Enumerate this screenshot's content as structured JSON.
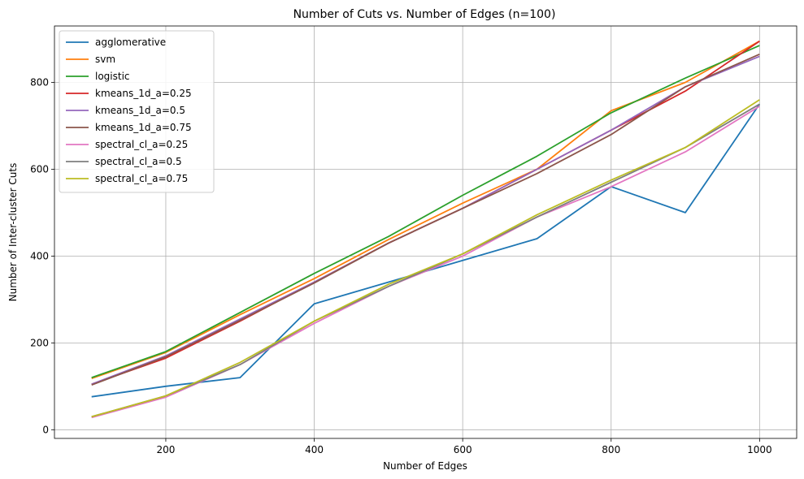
{
  "chart_data": {
    "type": "line",
    "title": "Number of Cuts vs. Number of Edges (n=100)",
    "xlabel": "Number of Edges",
    "ylabel": "Number of Inter-cluster Cuts",
    "xlim": [
      50,
      1050
    ],
    "ylim": [
      -20,
      930
    ],
    "xticks": [
      200,
      400,
      600,
      800,
      1000
    ],
    "yticks": [
      0,
      200,
      400,
      600,
      800
    ],
    "grid": true,
    "legend_position": "top-left",
    "x": [
      100,
      200,
      300,
      400,
      500,
      600,
      700,
      800,
      900,
      1000
    ],
    "series": [
      {
        "name": "agglomerative",
        "color": "#1f77b4",
        "values": [
          76,
          100,
          120,
          290,
          340,
          390,
          440,
          560,
          500,
          750
        ]
      },
      {
        "name": "svm",
        "color": "#ff7f0e",
        "values": [
          118,
          178,
          265,
          348,
          438,
          522,
          600,
          735,
          800,
          895
        ]
      },
      {
        "name": "logistic",
        "color": "#2ca02c",
        "values": [
          120,
          180,
          270,
          360,
          445,
          540,
          630,
          730,
          810,
          885
        ]
      },
      {
        "name": "kmeans_1d_a=0.25",
        "color": "#d62728",
        "values": [
          105,
          165,
          250,
          340,
          430,
          510,
          600,
          690,
          780,
          895
        ]
      },
      {
        "name": "kmeans_1d_a=0.5",
        "color": "#9467bd",
        "values": [
          105,
          170,
          255,
          340,
          430,
          510,
          600,
          690,
          790,
          860
        ]
      },
      {
        "name": "kmeans_1d_a=0.75",
        "color": "#8c564b",
        "values": [
          103,
          168,
          252,
          338,
          430,
          510,
          590,
          680,
          790,
          865
        ]
      },
      {
        "name": "spectral_cl_a=0.25",
        "color": "#e377c2",
        "values": [
          28,
          75,
          150,
          245,
          330,
          400,
          490,
          560,
          640,
          745
        ]
      },
      {
        "name": "spectral_cl_a=0.5",
        "color": "#7f7f7f",
        "values": [
          30,
          78,
          150,
          250,
          330,
          405,
          490,
          570,
          650,
          750
        ]
      },
      {
        "name": "spectral_cl_a=0.75",
        "color": "#bcbd22",
        "values": [
          30,
          78,
          155,
          250,
          335,
          405,
          495,
          575,
          650,
          760
        ]
      }
    ]
  }
}
